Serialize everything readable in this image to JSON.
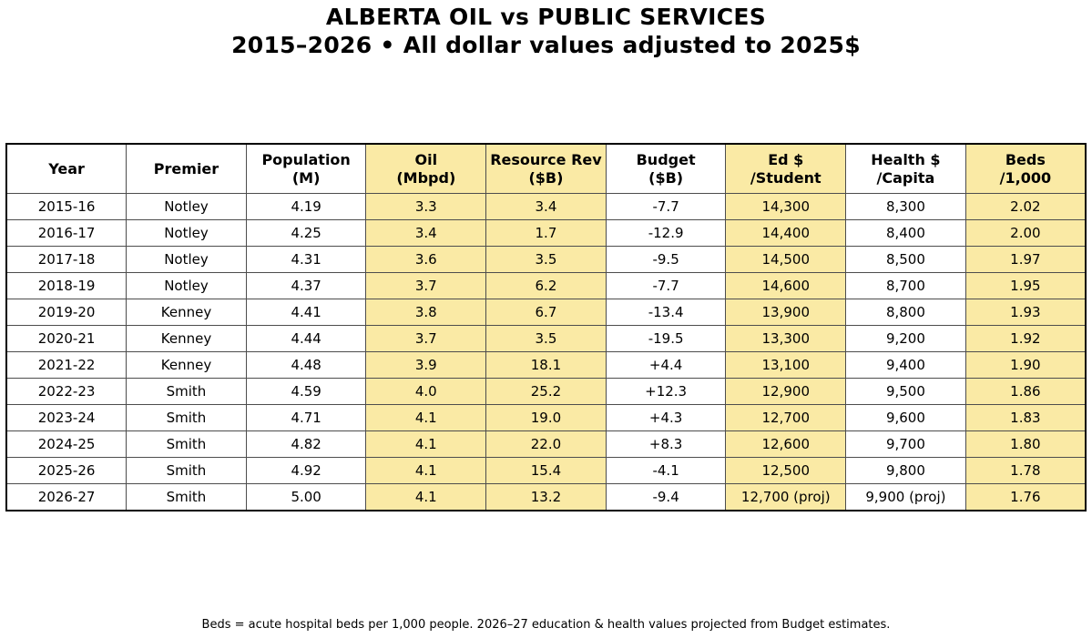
{
  "colors": {
    "highlight": "#FAEAA5",
    "grid_line": "#4d4d4d",
    "outer_border": "#000000",
    "text": "#000000",
    "background": "#ffffff"
  },
  "chart_data": {
    "type": "table",
    "title": "ALBERTA OIL vs PUBLIC SERVICES",
    "subtitle": "2015–2026 • All dollar values adjusted to 2025$",
    "footnote": "Beds = acute hospital beds per 1,000 people. 2026–27 education & health values projected from Budget estimates.",
    "highlighted_column_indexes": [
      3,
      4,
      6,
      8
    ],
    "columns": [
      {
        "line1": "Year",
        "line2": "",
        "highlight": false
      },
      {
        "line1": "Premier",
        "line2": "",
        "highlight": false
      },
      {
        "line1": "Population",
        "line2": "(M)",
        "highlight": false
      },
      {
        "line1": "Oil",
        "line2": "(Mbpd)",
        "highlight": true
      },
      {
        "line1": "Resource Rev",
        "line2": "($B)",
        "highlight": true
      },
      {
        "line1": "Budget",
        "line2": "($B)",
        "highlight": false
      },
      {
        "line1": "Ed $",
        "line2": "/Student",
        "highlight": true
      },
      {
        "line1": "Health $",
        "line2": "/Capita",
        "highlight": false
      },
      {
        "line1": "Beds",
        "line2": "/1,000",
        "highlight": true
      }
    ],
    "rows": [
      [
        "2015-16",
        "Notley",
        "4.19",
        "3.3",
        "3.4",
        "-7.7",
        "14,300",
        "8,300",
        "2.02"
      ],
      [
        "2016-17",
        "Notley",
        "4.25",
        "3.4",
        "1.7",
        "-12.9",
        "14,400",
        "8,400",
        "2.00"
      ],
      [
        "2017-18",
        "Notley",
        "4.31",
        "3.6",
        "3.5",
        "-9.5",
        "14,500",
        "8,500",
        "1.97"
      ],
      [
        "2018-19",
        "Notley",
        "4.37",
        "3.7",
        "6.2",
        "-7.7",
        "14,600",
        "8,700",
        "1.95"
      ],
      [
        "2019-20",
        "Kenney",
        "4.41",
        "3.8",
        "6.7",
        "-13.4",
        "13,900",
        "8,800",
        "1.93"
      ],
      [
        "2020-21",
        "Kenney",
        "4.44",
        "3.7",
        "3.5",
        "-19.5",
        "13,300",
        "9,200",
        "1.92"
      ],
      [
        "2021-22",
        "Kenney",
        "4.48",
        "3.9",
        "18.1",
        "+4.4",
        "13,100",
        "9,400",
        "1.90"
      ],
      [
        "2022-23",
        "Smith",
        "4.59",
        "4.0",
        "25.2",
        "+12.3",
        "12,900",
        "9,500",
        "1.86"
      ],
      [
        "2023-24",
        "Smith",
        "4.71",
        "4.1",
        "19.0",
        "+4.3",
        "12,700",
        "9,600",
        "1.83"
      ],
      [
        "2024-25",
        "Smith",
        "4.82",
        "4.1",
        "22.0",
        "+8.3",
        "12,600",
        "9,700",
        "1.80"
      ],
      [
        "2025-26",
        "Smith",
        "4.92",
        "4.1",
        "15.4",
        "-4.1",
        "12,500",
        "9,800",
        "1.78"
      ],
      [
        "2026-27",
        "Smith",
        "5.00",
        "4.1",
        "13.2",
        "-9.4",
        "12,700 (proj)",
        "9,900 (proj)",
        "1.76"
      ]
    ]
  }
}
